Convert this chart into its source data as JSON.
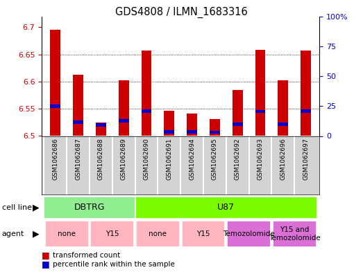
{
  "title": "GDS4808 / ILMN_1683316",
  "samples": [
    "GSM1062686",
    "GSM1062687",
    "GSM1062688",
    "GSM1062689",
    "GSM1062690",
    "GSM1062691",
    "GSM1062694",
    "GSM1062695",
    "GSM1062692",
    "GSM1062693",
    "GSM1062696",
    "GSM1062697"
  ],
  "red_values": [
    6.695,
    6.613,
    6.525,
    6.603,
    6.657,
    6.547,
    6.541,
    6.531,
    6.585,
    6.658,
    6.602,
    6.657
  ],
  "blue_values": [
    6.555,
    6.525,
    6.52,
    6.528,
    6.546,
    6.508,
    6.508,
    6.507,
    6.522,
    6.545,
    6.522,
    6.546
  ],
  "ymin": 6.5,
  "ymax": 6.72,
  "yticks": [
    6.5,
    6.55,
    6.6,
    6.65,
    6.7
  ],
  "ytick_labels": [
    "6.5",
    "6.55",
    "6.6",
    "6.65",
    "6.7"
  ],
  "y2ticks": [
    0,
    25,
    50,
    75,
    100
  ],
  "y2tick_labels": [
    "0",
    "25",
    "50",
    "75",
    "100%"
  ],
  "grid_lines": [
    6.55,
    6.6,
    6.65
  ],
  "cell_line_groups": [
    {
      "label": "DBTRG",
      "start": 0,
      "end": 3,
      "color": "#90EE90"
    },
    {
      "label": "U87",
      "start": 4,
      "end": 11,
      "color": "#7CFC00"
    }
  ],
  "agent_groups": [
    {
      "label": "none",
      "start": 0,
      "end": 1,
      "color": "#FFB6C1"
    },
    {
      "label": "Y15",
      "start": 2,
      "end": 3,
      "color": "#FFB6C1"
    },
    {
      "label": "none",
      "start": 4,
      "end": 5,
      "color": "#FFB6C1"
    },
    {
      "label": "Y15",
      "start": 6,
      "end": 7,
      "color": "#FFB6C1"
    },
    {
      "label": "Temozolomide",
      "start": 8,
      "end": 9,
      "color": "#DA70D6"
    },
    {
      "label": "Y15 and\nTemozolomide",
      "start": 10,
      "end": 11,
      "color": "#DA70D6"
    }
  ],
  "bar_width": 0.45,
  "bar_color_red": "#CC0000",
  "bar_color_blue": "#0000CC",
  "tick_label_color_left": "#CC0000",
  "tick_label_color_right": "#0000CC",
  "plot_bg": "#ffffff",
  "label_bg": "#d3d3d3"
}
